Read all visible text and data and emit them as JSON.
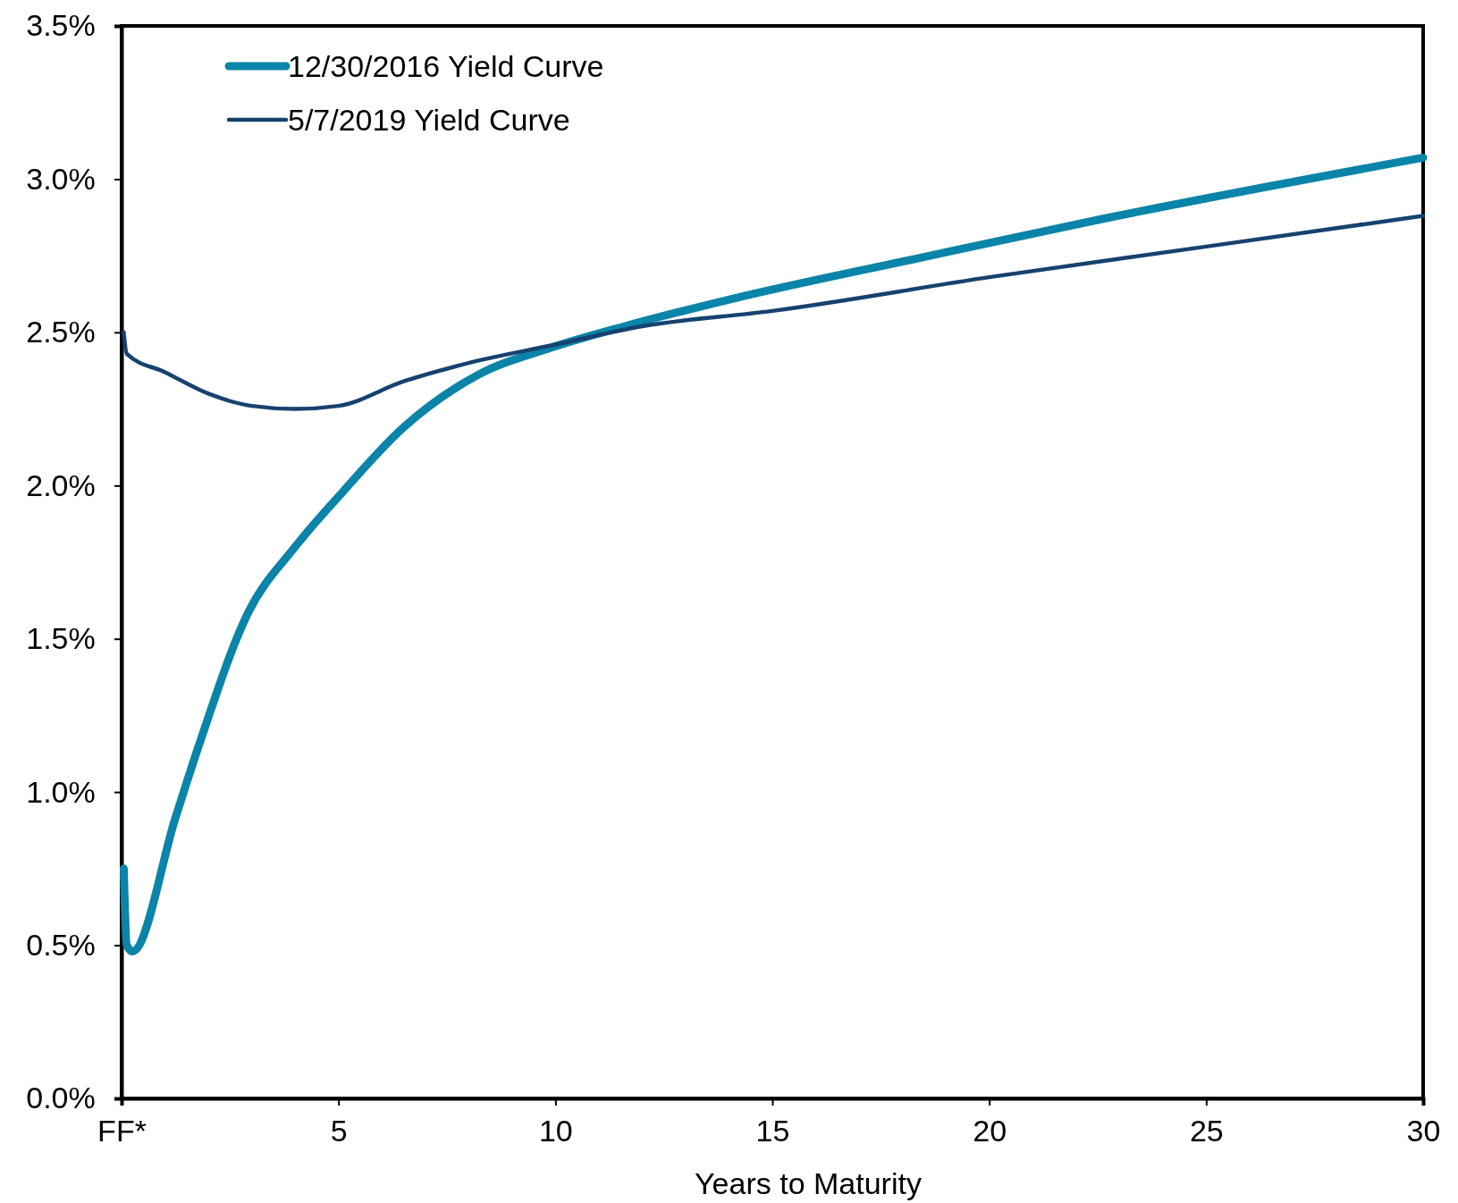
{
  "chart_data": {
    "type": "line",
    "xlabel": "Years to Maturity",
    "xlim": [
      0,
      30
    ],
    "xticks": [
      {
        "value": 0,
        "label": "FF*"
      },
      5,
      10,
      15,
      20,
      25,
      30
    ],
    "ylim": [
      0,
      3.5
    ],
    "yticks": [
      {
        "value": 0,
        "label": "0.0%"
      },
      {
        "value": 0.5,
        "label": "0.5%"
      },
      {
        "value": 1,
        "label": "1.0%"
      },
      {
        "value": 1.5,
        "label": "1.5%"
      },
      {
        "value": 2,
        "label": "2.0%"
      },
      {
        "value": 2.5,
        "label": "2.5%"
      },
      {
        "value": 3,
        "label": "3.0%"
      },
      {
        "value": 3.5,
        "label": "3.5%"
      }
    ],
    "legend": "top left",
    "grid": false,
    "series": [
      {
        "name": "12/30/2016 Yield Curve",
        "color": "#0a84a8",
        "x": [
          0.05,
          0.12,
          0.25,
          1.25,
          1.8,
          2.9,
          4,
          5.1,
          6.5,
          8.2,
          9.9,
          11.6,
          14.1,
          18.3,
          22.6,
          30
        ],
        "values": [
          0.75,
          0.5,
          0.48,
          0.92,
          1.16,
          1.58,
          1.8,
          1.98,
          2.19,
          2.36,
          2.45,
          2.52,
          2.61,
          2.74,
          2.87,
          3.07
        ]
      },
      {
        "name": "5/7/2019 Yield Curve",
        "color": "#16426f",
        "x": [
          0.05,
          0.12,
          1,
          2,
          3,
          4,
          5,
          6.5,
          8,
          10,
          12,
          15,
          20,
          25,
          30
        ],
        "values": [
          2.5,
          2.43,
          2.37,
          2.3,
          2.26,
          2.25,
          2.26,
          2.34,
          2.4,
          2.46,
          2.52,
          2.57,
          2.68,
          2.78,
          2.88
        ]
      }
    ]
  }
}
